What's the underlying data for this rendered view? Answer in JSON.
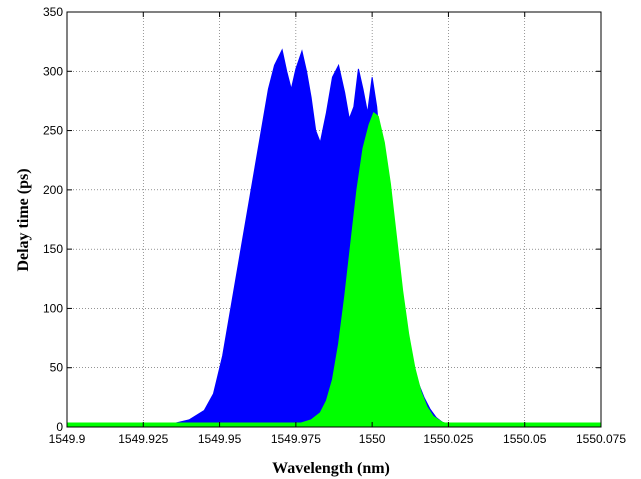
{
  "chart_data": {
    "type": "area",
    "title": "",
    "xlabel": "Wavelength (nm)",
    "ylabel": "Delay time (ps)",
    "xlim": [
      1549.9,
      1550.075
    ],
    "ylim": [
      0,
      350
    ],
    "xticks": [
      1549.9,
      1549.925,
      1549.95,
      1549.975,
      1550,
      1550.025,
      1550.05,
      1550.075
    ],
    "xtick_labels": [
      "1549.9",
      "1549.925",
      "1549.95",
      "1549.975",
      "1550",
      "1550.025",
      "1550.05",
      "1550.075"
    ],
    "yticks": [
      0,
      50,
      100,
      150,
      200,
      250,
      300,
      350
    ],
    "ytick_labels": [
      "0",
      "50",
      "100",
      "150",
      "200",
      "250",
      "300",
      "350"
    ],
    "grid": true,
    "series": [
      {
        "color": "#0000ff",
        "x": [
          1549.9,
          1549.925,
          1549.93,
          1549.935,
          1549.94,
          1549.945,
          1549.948,
          1549.951,
          1549.954,
          1549.957,
          1549.96,
          1549.963,
          1549.966,
          1549.968,
          1549.9705,
          1549.972,
          1549.9735,
          1549.975,
          1549.977,
          1549.9785,
          1549.98,
          1549.9815,
          1549.983,
          1549.985,
          1549.987,
          1549.989,
          1549.991,
          1549.9925,
          1549.994,
          1549.9955,
          1549.997,
          1549.9985,
          1550.0,
          1550.0015,
          1550.003,
          1550.005,
          1550.007,
          1550.009,
          1550.011,
          1550.013,
          1550.015,
          1550.017,
          1550.019,
          1550.021,
          1550.023,
          1550.026,
          1550.03,
          1550.05,
          1550.075
        ],
        "y": [
          0,
          0,
          1,
          3,
          6,
          14,
          28,
          60,
          105,
          150,
          195,
          240,
          285,
          305,
          318,
          300,
          285,
          302,
          317,
          300,
          278,
          250,
          240,
          265,
          295,
          305,
          282,
          260,
          270,
          302,
          285,
          265,
          295,
          270,
          225,
          190,
          150,
          115,
          80,
          55,
          38,
          25,
          15,
          8,
          4,
          1,
          0,
          0,
          0
        ]
      },
      {
        "color": "#00ff00",
        "x": [
          1549.9,
          1549.97,
          1549.975,
          1549.98,
          1549.983,
          1549.985,
          1549.987,
          1549.989,
          1549.991,
          1549.993,
          1549.995,
          1549.997,
          1549.999,
          1550.0005,
          1550.002,
          1550.004,
          1550.006,
          1550.008,
          1550.01,
          1550.012,
          1550.014,
          1550.016,
          1550.018,
          1550.02,
          1550.023,
          1550.027,
          1550.035,
          1550.075
        ],
        "y": [
          0,
          0,
          2,
          6,
          12,
          22,
          40,
          70,
          110,
          155,
          200,
          235,
          255,
          265,
          262,
          240,
          205,
          160,
          115,
          78,
          50,
          30,
          17,
          9,
          4,
          1,
          0,
          0
        ]
      }
    ]
  }
}
